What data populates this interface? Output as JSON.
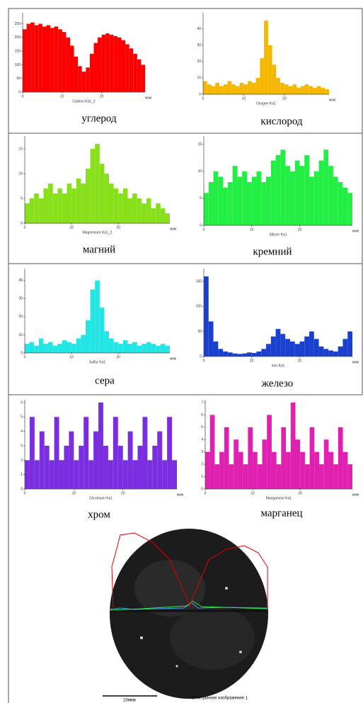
{
  "chart_data": [
    {
      "type": "bar",
      "name": "Carbon Ka1_2",
      "x_unit": "мкм",
      "caption": "углерод",
      "color": "#ff0000",
      "x": [
        0,
        1,
        2,
        3,
        4,
        5,
        6,
        7,
        8,
        9,
        10,
        11,
        12,
        13,
        14,
        15,
        16,
        17,
        18,
        19,
        20,
        21,
        22,
        23,
        24,
        25,
        26,
        27,
        28,
        29,
        30
      ],
      "values": [
        230,
        250,
        255,
        245,
        250,
        240,
        245,
        235,
        240,
        230,
        220,
        200,
        170,
        130,
        95,
        75,
        90,
        140,
        180,
        200,
        210,
        215,
        210,
        205,
        200,
        190,
        175,
        160,
        140,
        120,
        100
      ],
      "xlim": [
        0,
        31
      ],
      "xticks": [
        0,
        10,
        20
      ],
      "ylim": [
        0,
        280
      ],
      "yticks": [
        0,
        50,
        100,
        150,
        200,
        250
      ]
    },
    {
      "type": "bar",
      "name": "Oxygen Ka1",
      "x_unit": "мкм",
      "caption": "кислород",
      "color": "#f5b800",
      "x": [
        0,
        1,
        2,
        3,
        4,
        5,
        6,
        7,
        8,
        9,
        10,
        11,
        12,
        13,
        14,
        15,
        16,
        17,
        18,
        19,
        20,
        21,
        22,
        23,
        24,
        25,
        26,
        27,
        28,
        29,
        30
      ],
      "values": [
        8,
        6,
        5,
        7,
        5,
        6,
        8,
        6,
        5,
        7,
        6,
        8,
        7,
        10,
        22,
        45,
        30,
        18,
        10,
        7,
        6,
        5,
        6,
        4,
        5,
        6,
        5,
        4,
        5,
        4,
        3
      ],
      "xlim": [
        0,
        31
      ],
      "xticks": [
        0,
        10,
        20
      ],
      "ylim": [
        0,
        48
      ],
      "yticks": [
        0,
        10,
        20,
        30,
        40
      ]
    },
    {
      "type": "bar",
      "name": "Magnesium Ka1_2",
      "x_unit": "мкм",
      "caption": "магний",
      "color": "#88e01a",
      "x": [
        0,
        1,
        2,
        3,
        4,
        5,
        6,
        7,
        8,
        9,
        10,
        11,
        12,
        13,
        14,
        15,
        16,
        17,
        18,
        19,
        20,
        21,
        22,
        23,
        24,
        25,
        26,
        27,
        28,
        29,
        30
      ],
      "values": [
        4,
        5,
        6,
        5,
        7,
        8,
        6,
        7,
        6,
        8,
        7,
        9,
        8,
        11,
        15,
        16,
        12,
        10,
        8,
        7,
        6,
        7,
        5,
        6,
        5,
        4,
        5,
        3,
        4,
        3,
        2
      ],
      "xlim": [
        0,
        31
      ],
      "xticks": [
        0,
        10,
        20
      ],
      "ylim": [
        0,
        17
      ],
      "yticks": [
        0,
        5,
        10,
        15
      ]
    },
    {
      "type": "bar",
      "name": "Silicon Ka1",
      "x_unit": "мкм",
      "caption": "кремний",
      "color": "#22ee44",
      "x": [
        0,
        1,
        2,
        3,
        4,
        5,
        6,
        7,
        8,
        9,
        10,
        11,
        12,
        13,
        14,
        15,
        16,
        17,
        18,
        19,
        20,
        21,
        22,
        23,
        24,
        25,
        26,
        27,
        28,
        29,
        30
      ],
      "values": [
        6,
        8,
        10,
        9,
        7,
        8,
        11,
        9,
        10,
        8,
        9,
        10,
        8,
        9,
        12,
        13,
        14,
        11,
        10,
        12,
        11,
        13,
        9,
        10,
        12,
        14,
        11,
        9,
        8,
        7,
        6
      ],
      "xlim": [
        0,
        31
      ],
      "xticks": [
        0,
        10,
        20
      ],
      "ylim": [
        0,
        16
      ],
      "yticks": [
        0,
        5,
        10,
        15
      ]
    },
    {
      "type": "bar",
      "name": "Sulfur Ka1",
      "x_unit": "мкм",
      "caption": "сера",
      "color": "#22e6e6",
      "x": [
        0,
        1,
        2,
        3,
        4,
        5,
        6,
        7,
        8,
        9,
        10,
        11,
        12,
        13,
        14,
        15,
        16,
        17,
        18,
        19,
        20,
        21,
        22,
        23,
        24,
        25,
        26,
        27,
        28,
        29,
        30
      ],
      "values": [
        5,
        6,
        4,
        8,
        5,
        6,
        4,
        5,
        7,
        6,
        5,
        8,
        10,
        18,
        35,
        40,
        25,
        12,
        8,
        6,
        5,
        7,
        5,
        6,
        4,
        5,
        6,
        5,
        4,
        5,
        4
      ],
      "xlim": [
        0,
        31
      ],
      "xticks": [
        0,
        10,
        20
      ],
      "ylim": [
        0,
        45
      ],
      "yticks": [
        0,
        10,
        20,
        30,
        40
      ]
    },
    {
      "type": "bar",
      "name": "Iron Ka1",
      "x_unit": "мкм",
      "caption": "железо",
      "color": "#1a40d0",
      "x": [
        0,
        1,
        2,
        3,
        4,
        5,
        6,
        7,
        8,
        9,
        10,
        11,
        12,
        13,
        14,
        15,
        16,
        17,
        18,
        19,
        20,
        21,
        22,
        23,
        24,
        25,
        26,
        27,
        28,
        29,
        30
      ],
      "values": [
        160,
        70,
        30,
        15,
        10,
        8,
        6,
        5,
        6,
        8,
        7,
        10,
        15,
        25,
        40,
        55,
        45,
        35,
        30,
        25,
        30,
        40,
        50,
        35,
        20,
        15,
        12,
        10,
        20,
        35,
        50
      ],
      "xlim": [
        0,
        31
      ],
      "xticks": [
        0,
        10,
        20
      ],
      "ylim": [
        0,
        170
      ],
      "yticks": [
        0,
        50,
        100,
        150
      ]
    },
    {
      "type": "bar",
      "name": "Chromium Ka1",
      "x_unit": "мкм",
      "caption": "хром",
      "color": "#7a2ee0",
      "x": [
        0,
        1,
        2,
        3,
        4,
        5,
        6,
        7,
        8,
        9,
        10,
        11,
        12,
        13,
        14,
        15,
        16,
        17,
        18,
        19,
        20,
        21,
        22,
        23,
        24,
        25,
        26,
        27,
        28,
        29,
        30
      ],
      "values": [
        2,
        5,
        2,
        4,
        3,
        2,
        5,
        2,
        3,
        4,
        2,
        3,
        5,
        2,
        4,
        6,
        3,
        2,
        5,
        3,
        2,
        4,
        2,
        3,
        5,
        2,
        3,
        4,
        2,
        5,
        2
      ],
      "xlim": [
        0,
        31
      ],
      "xticks": [
        0,
        10,
        20
      ],
      "ylim": [
        0,
        6
      ],
      "yticks": [
        0,
        1,
        2,
        3,
        4,
        5,
        6
      ]
    },
    {
      "type": "bar",
      "name": "Manganese Ka1",
      "x_unit": "мкм",
      "caption": "марганец",
      "color": "#e020b0",
      "x": [
        0,
        1,
        2,
        3,
        4,
        5,
        6,
        7,
        8,
        9,
        10,
        11,
        12,
        13,
        14,
        15,
        16,
        17,
        18,
        19,
        20,
        21,
        22,
        23,
        24,
        25,
        26,
        27,
        28,
        29,
        30
      ],
      "values": [
        3,
        6,
        2,
        3,
        5,
        2,
        4,
        3,
        2,
        5,
        3,
        2,
        4,
        6,
        3,
        2,
        5,
        3,
        7,
        4,
        3,
        2,
        5,
        3,
        2,
        4,
        3,
        2,
        5,
        3,
        2
      ],
      "xlim": [
        0,
        31
      ],
      "xticks": [
        0,
        10,
        20
      ],
      "ylim": [
        0,
        7
      ],
      "yticks": [
        0,
        1,
        2,
        3,
        4,
        5,
        6,
        7
      ]
    }
  ],
  "image": {
    "scale_label": "10мкм",
    "caption": "Электронное изображение 1"
  }
}
